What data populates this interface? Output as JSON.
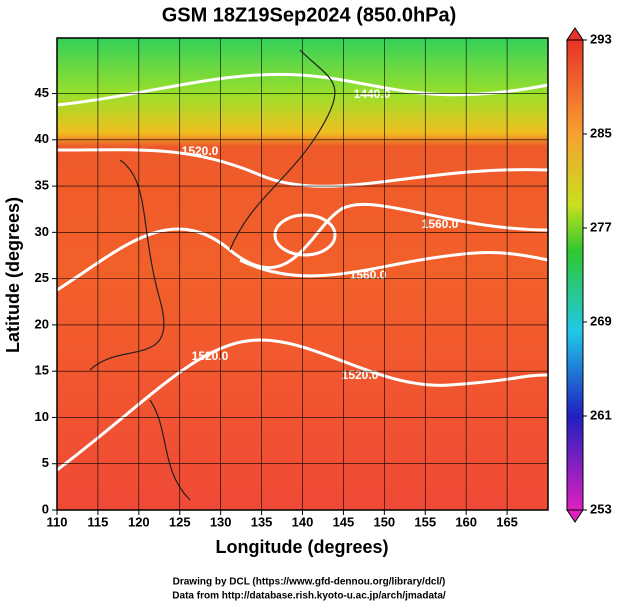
{
  "chart_data": {
    "type": "contour",
    "title": "GSM 18Z19Sep2024 (850.0hPa)",
    "x_label": "Longitude (degrees)",
    "y_label": "Latitude  (degrees)",
    "xlim": [
      110,
      170
    ],
    "xticks": [
      110,
      115,
      120,
      125,
      130,
      135,
      140,
      145,
      150,
      155,
      160,
      165
    ],
    "ylim": [
      0,
      51
    ],
    "yticks": [
      0,
      5,
      10,
      15,
      20,
      25,
      30,
      35,
      40,
      45
    ],
    "grid": true,
    "colorbar": {
      "lim": [
        253,
        293
      ],
      "ticks": [
        253,
        261,
        269,
        277,
        285,
        293
      ]
    },
    "annotations": [
      "1440.0",
      "1520.0",
      "1560.0",
      "1560.0",
      "1520.0",
      "1520.0"
    ],
    "credits": [
      "Drawing by DCL (https://www.gfd-dennou.org/library/dcl/)",
      "Data from http://database.rish.kyoto-u.ac.jp/arch/jmadata/"
    ]
  }
}
